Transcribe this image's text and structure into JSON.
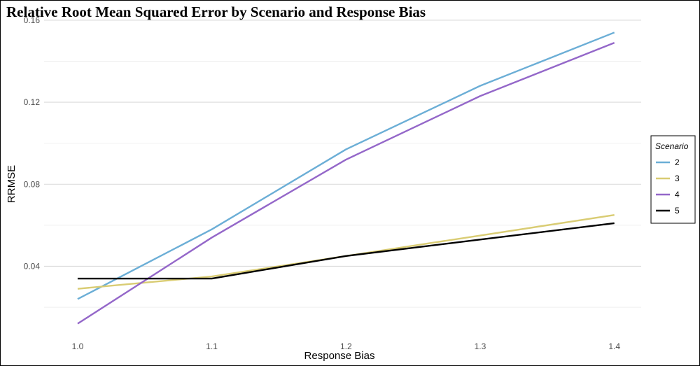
{
  "chart_data": {
    "type": "line",
    "title": "Relative Root Mean Squared Error by Scenario and Response Bias",
    "xlabel": "Response Bias",
    "ylabel": "RRMSE",
    "x": [
      1.0,
      1.1,
      1.2,
      1.3,
      1.4
    ],
    "x_tick_labels": [
      "1.0",
      "1.1",
      "1.2",
      "1.3",
      "1.4"
    ],
    "y_ticks": [
      0.04,
      0.08,
      0.12,
      0.16
    ],
    "y_tick_labels": [
      "0.04",
      "0.08",
      "0.12",
      "0.16"
    ],
    "xlim": [
      0.975,
      1.42
    ],
    "ylim": [
      0.005,
      0.162
    ],
    "grid": true,
    "legend_title": "Scenario",
    "legend_position": "right",
    "series": [
      {
        "name": "2",
        "color": "#6baed6",
        "values": [
          0.024,
          0.058,
          0.097,
          0.128,
          0.154
        ]
      },
      {
        "name": "3",
        "color": "#d9cc73",
        "values": [
          0.029,
          0.035,
          0.045,
          0.055,
          0.065
        ]
      },
      {
        "name": "4",
        "color": "#9467c9",
        "values": [
          0.012,
          0.054,
          0.092,
          0.123,
          0.149
        ]
      },
      {
        "name": "5",
        "color": "#000000",
        "values": [
          0.034,
          0.034,
          0.045,
          0.053,
          0.061
        ]
      }
    ]
  }
}
